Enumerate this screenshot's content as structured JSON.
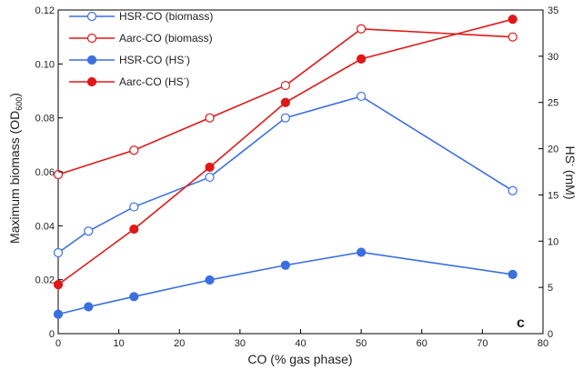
{
  "chart_data": {
    "type": "line",
    "x_axis": {
      "label": "CO (% gas phase)",
      "range": [
        0,
        80
      ],
      "ticks": [
        "0",
        "10",
        "20",
        "30",
        "40",
        "50",
        "60",
        "70",
        "80"
      ]
    },
    "y_left": {
      "label_main": "Maximum biomass (OD",
      "label_sub": "600",
      "label_end": ")",
      "range": [
        0,
        0.12
      ],
      "ticks": [
        "0",
        "0.02",
        "0.04",
        "0.06",
        "0.08",
        "0.10",
        "0.12"
      ]
    },
    "y_right": {
      "label_main": "HS",
      "label_sup": "-",
      "label_end": " (mM)",
      "range": [
        0,
        35
      ],
      "ticks": [
        "0",
        "5",
        "10",
        "15",
        "20",
        "25",
        "30",
        "35"
      ]
    },
    "series": [
      {
        "name": "HSR-CO (biomass)",
        "axis": "left",
        "color": "#3b6fe0",
        "marker": "open",
        "x": [
          0,
          5,
          12.5,
          25,
          37.5,
          50,
          75
        ],
        "y": [
          0.03,
          0.038,
          0.047,
          0.058,
          0.08,
          0.088,
          0.053
        ]
      },
      {
        "name": "Aarc-CO (biomass)",
        "axis": "left",
        "color": "#e01818",
        "marker": "open",
        "x": [
          0,
          12.5,
          25,
          37.5,
          50,
          75
        ],
        "y": [
          0.059,
          0.068,
          0.08,
          0.092,
          0.113,
          0.11
        ]
      },
      {
        "name": "HSR-CO (HS-)",
        "name_main": "HSR-CO (HS",
        "name_sup": "-",
        "name_end": ")",
        "axis": "right",
        "color": "#3b6fe0",
        "marker": "filled",
        "x": [
          0,
          5,
          12.5,
          25,
          37.5,
          50,
          75
        ],
        "y": [
          2.1,
          2.9,
          4.0,
          5.8,
          7.4,
          8.8,
          6.4
        ]
      },
      {
        "name": "Aarc-CO (HS-)",
        "name_main": "Aarc-CO (HS",
        "name_sup": "-",
        "name_end": ")",
        "axis": "right",
        "color": "#e01818",
        "marker": "filled",
        "x": [
          0,
          12.5,
          25,
          37.5,
          50,
          75
        ],
        "y": [
          5.3,
          11.3,
          18.0,
          25.0,
          29.7,
          34.0
        ]
      }
    ],
    "legend": {
      "placement": "top-left"
    },
    "annotation": "c",
    "grid": false
  }
}
